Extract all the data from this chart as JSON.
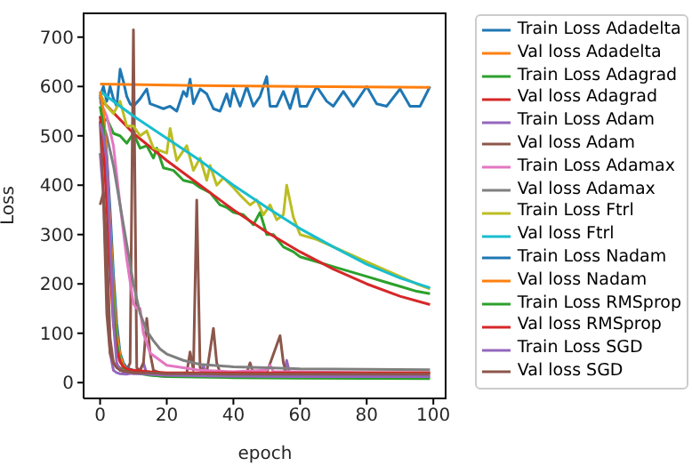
{
  "chart_data": {
    "type": "line",
    "xlabel": "epoch",
    "ylabel": "Loss",
    "xlim": [
      -4.95,
      103.95
    ],
    "ylim": [
      -32,
      750
    ],
    "xticks": [
      0,
      20,
      40,
      60,
      80,
      100
    ],
    "yticks": [
      0,
      100,
      200,
      300,
      400,
      500,
      600,
      700
    ],
    "legend": "right",
    "marker": "none",
    "line_style": "solid",
    "series": [
      {
        "name": "Train Loss Adadelta",
        "color": "#1f77b4",
        "x": [
          0,
          1,
          2,
          3,
          4,
          5,
          6,
          7,
          8,
          9,
          10,
          12,
          14,
          15,
          17,
          19,
          21,
          23,
          25,
          26,
          27,
          28,
          30,
          32,
          34,
          36,
          38,
          39,
          40,
          42,
          44,
          46,
          48,
          50,
          51,
          53,
          55,
          57,
          59,
          60,
          62,
          65,
          68,
          70,
          73,
          76,
          80,
          83,
          86,
          90,
          93,
          96,
          99
        ],
        "values": [
          580,
          600,
          570,
          600,
          575,
          560,
          635,
          610,
          580,
          565,
          560,
          575,
          595,
          565,
          560,
          555,
          560,
          550,
          590,
          580,
          615,
          565,
          595,
          585,
          555,
          550,
          585,
          560,
          595,
          560,
          600,
          560,
          580,
          620,
          560,
          560,
          590,
          555,
          600,
          560,
          560,
          600,
          570,
          560,
          590,
          560,
          600,
          565,
          560,
          595,
          560,
          560,
          600
        ]
      },
      {
        "name": "Val loss Adadelta",
        "color": "#ff7f0e",
        "x": [
          0,
          30,
          60,
          99
        ],
        "values": [
          605,
          602,
          600,
          598
        ]
      },
      {
        "name": "Train Loss Adagrad",
        "color": "#2ca02c",
        "x": [
          0,
          2,
          4,
          6,
          8,
          10,
          12,
          14,
          16,
          17,
          19,
          22,
          25,
          28,
          30,
          33,
          36,
          38,
          40,
          43,
          46,
          48,
          50,
          52,
          55,
          58,
          60,
          65,
          70,
          75,
          80,
          85,
          90,
          95,
          99
        ],
        "values": [
          520,
          535,
          505,
          500,
          485,
          505,
          475,
          480,
          455,
          475,
          435,
          430,
          410,
          405,
          395,
          385,
          360,
          355,
          345,
          340,
          320,
          345,
          300,
          300,
          275,
          265,
          255,
          245,
          235,
          225,
          215,
          205,
          195,
          185,
          180
        ]
      },
      {
        "name": "Val loss Adagrad",
        "color": "#d62728",
        "x": [
          0,
          10,
          20,
          30,
          40,
          50,
          60,
          70,
          80,
          90,
          99
        ],
        "values": [
          575,
          505,
          450,
          400,
          350,
          305,
          265,
          230,
          200,
          175,
          158
        ]
      },
      {
        "name": "Train Loss Adam",
        "color": "#9467bd",
        "x": [
          0,
          1,
          2,
          3,
          4,
          5,
          6,
          8,
          10,
          12,
          13,
          14,
          16,
          20,
          25,
          30,
          31,
          32,
          40,
          45,
          50,
          55,
          56,
          57,
          60,
          70,
          80,
          90,
          99
        ],
        "values": [
          465,
          380,
          200,
          60,
          25,
          20,
          18,
          17,
          20,
          25,
          40,
          18,
          15,
          12,
          14,
          12,
          35,
          14,
          12,
          15,
          12,
          14,
          45,
          15,
          12,
          12,
          12,
          12,
          12
        ]
      },
      {
        "name": "Val loss Adam",
        "color": "#8c564b",
        "x": [
          0,
          1,
          2,
          3,
          4,
          5,
          6,
          7,
          8,
          9,
          10,
          11,
          12,
          13,
          14,
          15,
          16,
          18,
          22,
          26,
          27,
          28,
          29,
          30,
          32,
          34,
          35,
          36,
          40,
          44,
          45,
          46,
          50,
          54,
          55,
          56,
          60,
          70,
          80,
          90,
          99
        ],
        "values": [
          530,
          380,
          140,
          60,
          40,
          35,
          30,
          22,
          25,
          40,
          715,
          30,
          25,
          40,
          130,
          60,
          25,
          20,
          18,
          20,
          62,
          25,
          370,
          30,
          20,
          110,
          40,
          20,
          18,
          20,
          40,
          18,
          20,
          95,
          40,
          18,
          20,
          20,
          20,
          20,
          20
        ]
      },
      {
        "name": "Train Loss Adamax",
        "color": "#e377c2",
        "x": [
          0,
          2,
          4,
          6,
          8,
          10,
          11,
          12,
          13,
          15,
          18,
          20,
          25,
          30,
          40,
          50,
          51,
          52,
          60,
          80,
          99
        ],
        "values": [
          570,
          540,
          480,
          360,
          250,
          160,
          150,
          150,
          100,
          60,
          45,
          35,
          30,
          25,
          22,
          25,
          35,
          22,
          22,
          20,
          20
        ]
      },
      {
        "name": "Val loss Adamax",
        "color": "#7f7f7f",
        "x": [
          0,
          2,
          4,
          6,
          8,
          10,
          12,
          14,
          16,
          18,
          20,
          25,
          30,
          40,
          50,
          60,
          80,
          99
        ],
        "values": [
          540,
          500,
          440,
          360,
          280,
          200,
          140,
          105,
          85,
          68,
          58,
          45,
          37,
          32,
          30,
          28,
          27,
          26
        ]
      },
      {
        "name": "Train Loss Ftrl",
        "color": "#bcbd22",
        "x": [
          0,
          2,
          4,
          6,
          8,
          10,
          12,
          14,
          16,
          18,
          20,
          21,
          23,
          25,
          26,
          28,
          30,
          32,
          33,
          35,
          37,
          40,
          42,
          45,
          47,
          49,
          51,
          53,
          55,
          56,
          58,
          60,
          65,
          70,
          75,
          80,
          85,
          90,
          95,
          99
        ],
        "values": [
          585,
          560,
          545,
          570,
          520,
          520,
          500,
          510,
          475,
          470,
          465,
          515,
          450,
          470,
          480,
          430,
          455,
          410,
          440,
          400,
          415,
          395,
          380,
          360,
          370,
          340,
          360,
          330,
          340,
          400,
          335,
          300,
          290,
          275,
          260,
          245,
          230,
          215,
          200,
          190
        ]
      },
      {
        "name": "Val loss Ftrl",
        "color": "#17becf",
        "x": [
          0,
          10,
          20,
          30,
          40,
          50,
          60,
          70,
          80,
          90,
          99
        ],
        "values": [
          590,
          540,
          495,
          450,
          400,
          355,
          312,
          275,
          240,
          212,
          192
        ]
      },
      {
        "name": "Train Loss Nadam",
        "color": "#1f77b4",
        "x": [
          0,
          1,
          2,
          3,
          4,
          5,
          6,
          7,
          8,
          10,
          15
        ],
        "values": [
          580,
          540,
          460,
          350,
          220,
          120,
          60,
          40,
          30,
          25,
          20
        ]
      },
      {
        "name": "Val loss Nadam",
        "color": "#ff7f0e",
        "x": [
          0,
          1,
          2,
          3,
          4,
          5,
          6,
          7,
          8,
          10
        ],
        "values": [
          590,
          550,
          450,
          320,
          190,
          100,
          55,
          35,
          28,
          22
        ]
      },
      {
        "name": "Train Loss RMSprop",
        "color": "#2ca02c",
        "x": [
          0,
          1,
          2,
          3,
          4,
          5,
          6,
          7,
          8,
          10,
          15,
          20,
          40,
          60,
          99
        ],
        "values": [
          560,
          520,
          420,
          290,
          160,
          80,
          45,
          30,
          25,
          20,
          15,
          12,
          10,
          9,
          8
        ]
      },
      {
        "name": "Val loss RMSprop",
        "color": "#d62728",
        "x": [
          0,
          1,
          2,
          3,
          4,
          5,
          6,
          7,
          8,
          10,
          15,
          20,
          40,
          60,
          99
        ],
        "values": [
          540,
          480,
          360,
          230,
          120,
          65,
          42,
          32,
          28,
          25,
          22,
          20,
          20,
          20,
          20
        ]
      },
      {
        "name": "Train Loss SGD",
        "color": "#9467bd",
        "x": [
          0,
          1,
          2,
          3,
          4,
          5,
          6,
          8,
          10,
          12,
          20,
          40,
          60,
          80,
          99
        ],
        "values": [
          525,
          500,
          450,
          300,
          120,
          40,
          25,
          20,
          18,
          18,
          15,
          13,
          12,
          12,
          12
        ]
      },
      {
        "name": "Val loss SGD",
        "color": "#8c564b",
        "x": [
          0,
          1,
          2,
          3,
          4,
          5,
          6,
          8,
          10,
          15,
          20,
          30,
          40,
          50,
          60,
          70,
          80,
          90,
          99
        ],
        "values": [
          360,
          385,
          280,
          90,
          40,
          30,
          25,
          22,
          20,
          20,
          18,
          18,
          17,
          17,
          17,
          17,
          17,
          17,
          17
        ]
      }
    ]
  }
}
